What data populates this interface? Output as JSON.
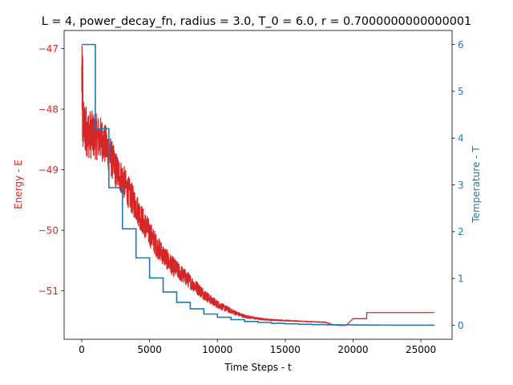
{
  "chart_data": {
    "type": "line",
    "title": "L = 4, power_decay_fn, radius = 3.0, T_0 = 6.0, r = 0.7000000000000001",
    "xlabel": "Time Steps - t",
    "ylabel_left": "Energy - E",
    "ylabel_right": "Temperature - T",
    "xlim": [
      -1300,
      27300
    ],
    "ylim_left": [
      -51.8,
      -46.7
    ],
    "ylim_right": [
      -0.3,
      6.3
    ],
    "x_ticks": [
      0,
      5000,
      10000,
      15000,
      20000,
      25000
    ],
    "x_tick_labels": [
      "0",
      "5000",
      "10000",
      "15000",
      "20000",
      "25000"
    ],
    "y_left_ticks": [
      -47,
      -48,
      -49,
      -50,
      -51
    ],
    "y_left_tick_labels": [
      "−47",
      "−48",
      "−49",
      "−50",
      "−51"
    ],
    "y_right_ticks": [
      0,
      1,
      2,
      3,
      4,
      5,
      6
    ],
    "y_right_tick_labels": [
      "0",
      "1",
      "2",
      "3",
      "4",
      "5",
      "6"
    ],
    "grid": false,
    "colors": {
      "energy": "#d62728",
      "temperature": "#1f77b4",
      "text": "#000000"
    },
    "series": [
      {
        "axis": "left",
        "style": "noisy-line",
        "x": [
          0,
          200,
          500,
          1000,
          1500,
          2000,
          2500,
          3000,
          3500,
          4000,
          4500,
          5000,
          5500,
          6000,
          6500,
          7000,
          7500,
          8000,
          8500,
          9000,
          9500,
          10000,
          10500,
          11000,
          11500,
          12000,
          12500,
          13000,
          14000,
          15000,
          16000,
          17000,
          18000,
          18500,
          19000,
          19500,
          20000,
          21000,
          21010,
          26000
        ],
        "values": [
          -48.2,
          -48.3,
          -48.4,
          -48.45,
          -48.5,
          -48.7,
          -49.0,
          -49.15,
          -49.4,
          -49.6,
          -49.85,
          -50.05,
          -50.25,
          -50.4,
          -50.55,
          -50.65,
          -50.75,
          -50.85,
          -50.95,
          -51.05,
          -51.15,
          -51.22,
          -51.28,
          -51.33,
          -51.38,
          -51.42,
          -51.44,
          -51.46,
          -51.48,
          -51.49,
          -51.5,
          -51.51,
          -51.52,
          -51.56,
          -51.57,
          -51.57,
          -51.46,
          -51.46,
          -51.36,
          -51.36
        ],
        "noise": [
          0.9,
          0.8,
          0.75,
          0.7,
          0.65,
          0.6,
          0.55,
          0.5,
          0.48,
          0.45,
          0.42,
          0.4,
          0.35,
          0.32,
          0.3,
          0.27,
          0.25,
          0.22,
          0.2,
          0.17,
          0.14,
          0.12,
          0.1,
          0.08,
          0.06,
          0.05,
          0.04,
          0.03,
          0.02,
          0.015,
          0.01,
          0.01,
          0.01,
          0.005,
          0.005,
          0.0,
          0.0,
          0.0,
          0.0,
          0.0
        ]
      },
      {
        "axis": "right",
        "style": "step",
        "x": [
          0,
          1000,
          2000,
          3000,
          4000,
          5000,
          6000,
          7000,
          8000,
          9000,
          10000,
          11000,
          12000,
          13000,
          14000,
          15000,
          16000,
          17000,
          18000,
          19000,
          20000,
          21000,
          22000,
          23000,
          24000,
          25000,
          26000
        ],
        "values": [
          6.0,
          4.2,
          2.94,
          2.06,
          1.44,
          1.01,
          0.71,
          0.49,
          0.35,
          0.24,
          0.17,
          0.12,
          0.08,
          0.06,
          0.04,
          0.03,
          0.02,
          0.014,
          0.01,
          0.007,
          0.005,
          0.003,
          0.002,
          0.0016,
          0.0011,
          0.0008,
          0.0008
        ]
      }
    ]
  }
}
